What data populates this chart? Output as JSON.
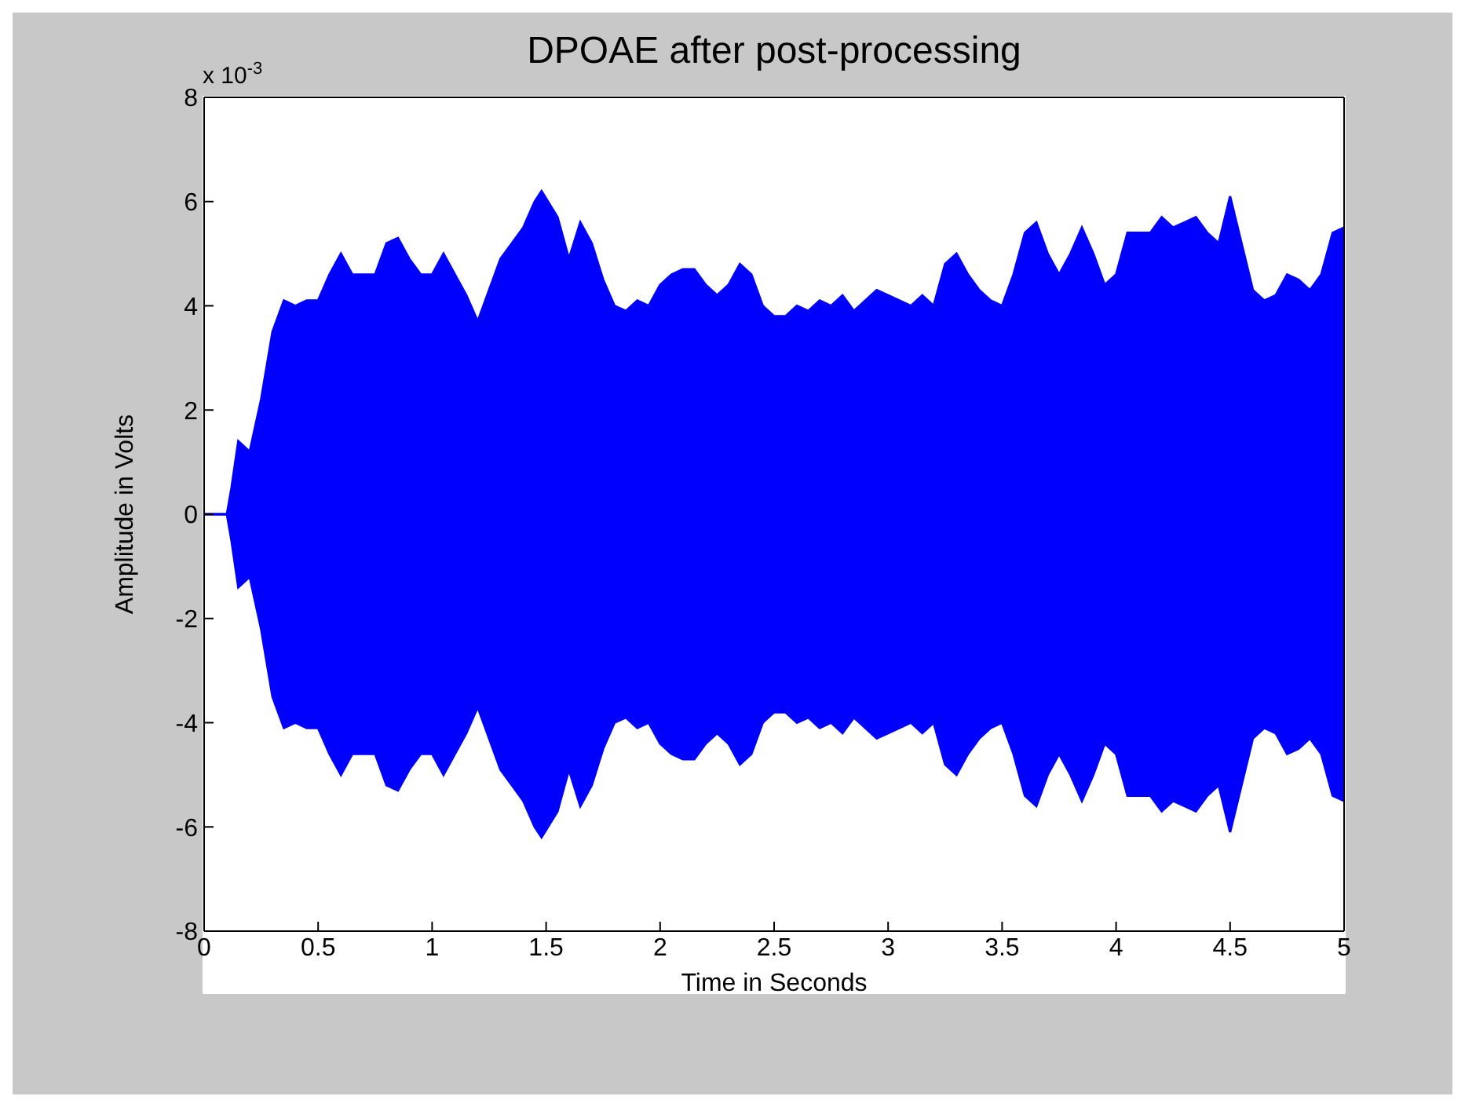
{
  "chart_data": {
    "type": "area",
    "title": "DPOAE after post-processing",
    "xlabel": "Time in Seconds",
    "ylabel": "Amplitude in Volts",
    "annotations": [
      "x 10$^{-3}$"
    ],
    "x": [
      0,
      0.1,
      0.12,
      0.15,
      0.2,
      0.25,
      0.3,
      0.35,
      0.4,
      0.45,
      0.5,
      0.55,
      0.6,
      0.65,
      0.7,
      0.75,
      0.8,
      0.85,
      0.9,
      0.95,
      1.0,
      1.05,
      1.1,
      1.15,
      1.2,
      1.25,
      1.3,
      1.35,
      1.4,
      1.45,
      1.48,
      1.55,
      1.6,
      1.65,
      1.7,
      1.75,
      1.8,
      1.85,
      1.9,
      1.95,
      2.0,
      2.05,
      2.1,
      2.15,
      2.2,
      2.25,
      2.3,
      2.35,
      2.4,
      2.45,
      2.5,
      2.55,
      2.6,
      2.65,
      2.7,
      2.75,
      2.8,
      2.85,
      2.9,
      2.95,
      3.0,
      3.05,
      3.1,
      3.15,
      3.2,
      3.25,
      3.3,
      3.35,
      3.4,
      3.45,
      3.5,
      3.55,
      3.6,
      3.65,
      3.7,
      3.75,
      3.8,
      3.85,
      3.9,
      3.95,
      4.0,
      4.05,
      4.1,
      4.15,
      4.2,
      4.25,
      4.3,
      4.35,
      4.4,
      4.45,
      4.5,
      4.55,
      4.6,
      4.65,
      4.7,
      4.75,
      4.8,
      4.85,
      4.9,
      4.95,
      5.0
    ],
    "series": [
      {
        "color": "#0000ff",
        "values": [
          0,
          0,
          0.5,
          1.4,
          1.2,
          2.2,
          3.5,
          4.1,
          4.0,
          4.1,
          4.1,
          4.6,
          5.0,
          4.6,
          4.6,
          4.6,
          5.2,
          5.3,
          4.9,
          4.6,
          4.6,
          5.0,
          4.6,
          4.2,
          3.7,
          4.3,
          4.9,
          5.2,
          5.5,
          6.0,
          6.2,
          5.7,
          4.9,
          5.6,
          5.2,
          4.5,
          4.0,
          3.9,
          4.1,
          4.0,
          4.4,
          4.6,
          4.7,
          4.7,
          4.4,
          4.2,
          4.4,
          4.8,
          4.6,
          4.0,
          3.8,
          3.8,
          4.0,
          3.9,
          4.1,
          4.0,
          4.2,
          3.9,
          4.1,
          4.3,
          4.2,
          4.1,
          4.0,
          4.2,
          4.0,
          4.8,
          5.0,
          4.6,
          4.3,
          4.1,
          4.0,
          4.6,
          5.4,
          5.6,
          5.0,
          4.6,
          5.0,
          5.5,
          5.0,
          4.4,
          4.6,
          5.4,
          5.4,
          5.4,
          5.7,
          5.5,
          5.6,
          5.7,
          5.4,
          5.2,
          6.1,
          5.2,
          4.3,
          4.1,
          4.2,
          4.6,
          4.5,
          4.3,
          4.6,
          5.4,
          5.5
        ]
      },
      {
        "color": "#0000ff",
        "values": [
          0,
          0,
          -0.5,
          -1.4,
          -1.2,
          -2.2,
          -3.5,
          -4.1,
          -4.0,
          -4.1,
          -4.1,
          -4.6,
          -5.0,
          -4.6,
          -4.6,
          -4.6,
          -5.2,
          -5.3,
          -4.9,
          -4.6,
          -4.6,
          -5.0,
          -4.6,
          -4.2,
          -3.7,
          -4.3,
          -4.9,
          -5.2,
          -5.5,
          -6.0,
          -6.2,
          -5.7,
          -4.9,
          -5.6,
          -5.2,
          -4.5,
          -4.0,
          -3.9,
          -4.1,
          -4.0,
          -4.4,
          -4.6,
          -4.7,
          -4.7,
          -4.4,
          -4.2,
          -4.4,
          -4.8,
          -4.6,
          -4.0,
          -3.8,
          -3.8,
          -4.0,
          -3.9,
          -4.1,
          -4.0,
          -4.2,
          -3.9,
          -4.1,
          -4.3,
          -4.2,
          -4.1,
          -4.0,
          -4.2,
          -4.0,
          -4.8,
          -5.0,
          -4.6,
          -4.3,
          -4.1,
          -4.0,
          -4.6,
          -5.4,
          -5.6,
          -5.0,
          -4.6,
          -5.0,
          -5.5,
          -5.0,
          -4.4,
          -4.6,
          -5.4,
          -5.4,
          -5.4,
          -5.7,
          -5.5,
          -5.6,
          -5.7,
          -5.4,
          -5.2,
          -6.1,
          -5.2,
          -4.3,
          -4.1,
          -4.2,
          -4.6,
          -4.5,
          -4.3,
          -4.6,
          -5.4,
          -5.5
        ]
      }
    ],
    "xlim": [
      0,
      5
    ],
    "xticks": [
      0,
      0.5,
      1,
      1.5,
      2,
      2.5,
      3,
      3.5,
      4,
      4.5,
      5
    ],
    "ylim": [
      -8,
      8
    ],
    "yticks": [
      -8,
      -6,
      -4,
      -2,
      0,
      2,
      4,
      6,
      8
    ]
  }
}
